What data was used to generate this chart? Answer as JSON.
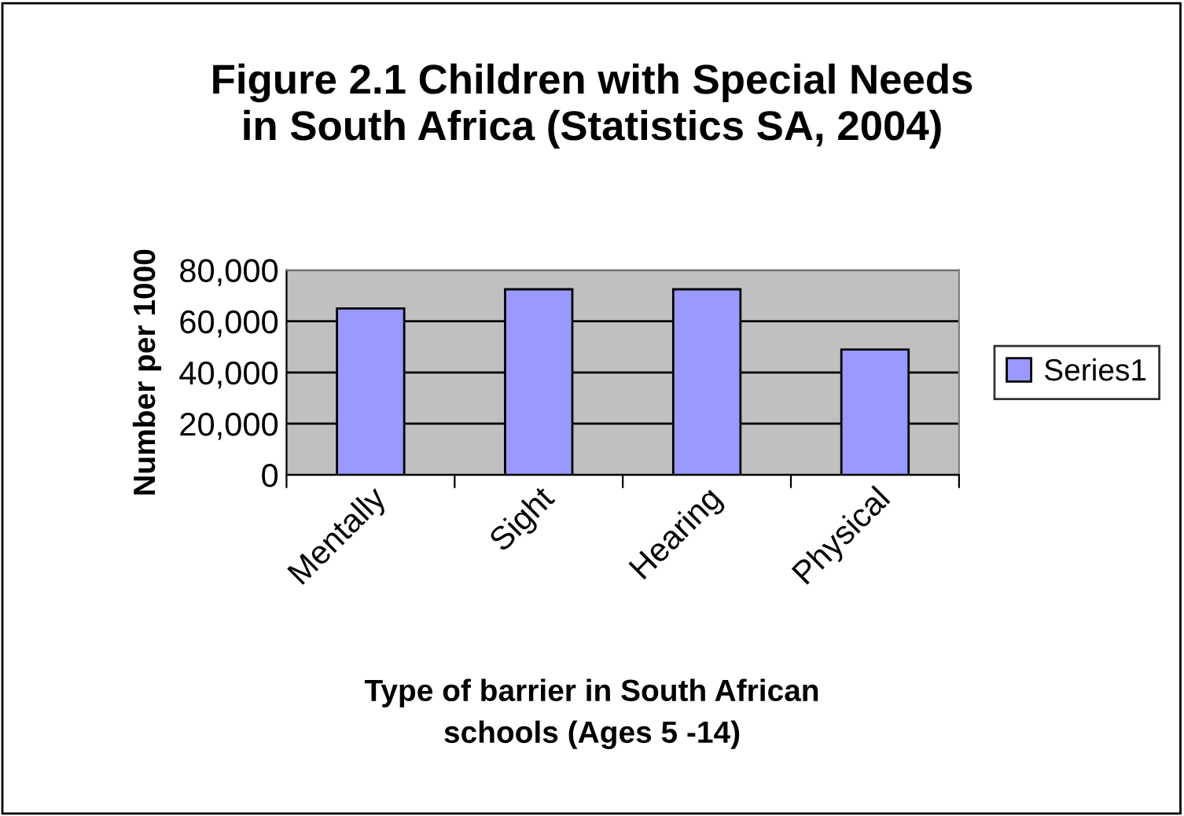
{
  "chart_data": {
    "type": "bar",
    "title": "Figure 2.1 Children with Special Needs\nin South Africa (Statistics SA, 2004)",
    "xlabel": "Type of barrier in South African\nschools (Ages 5 -14)",
    "ylabel": "Number per 1000",
    "categories": [
      "Mentally",
      "Sight",
      "Hearing",
      "Physical"
    ],
    "series": [
      {
        "name": "Series1",
        "color": "#9999ff",
        "values": [
          65000,
          72500,
          72500,
          49000
        ]
      }
    ],
    "ylim": [
      0,
      80000
    ],
    "yticks": [
      {
        "value": 0,
        "label": "0"
      },
      {
        "value": 20000,
        "label": "20,000"
      },
      {
        "value": 40000,
        "label": "40,000"
      },
      {
        "value": 60000,
        "label": "60,000"
      },
      {
        "value": 80000,
        "label": "80,000"
      }
    ],
    "grid": "y",
    "legend": "right"
  }
}
